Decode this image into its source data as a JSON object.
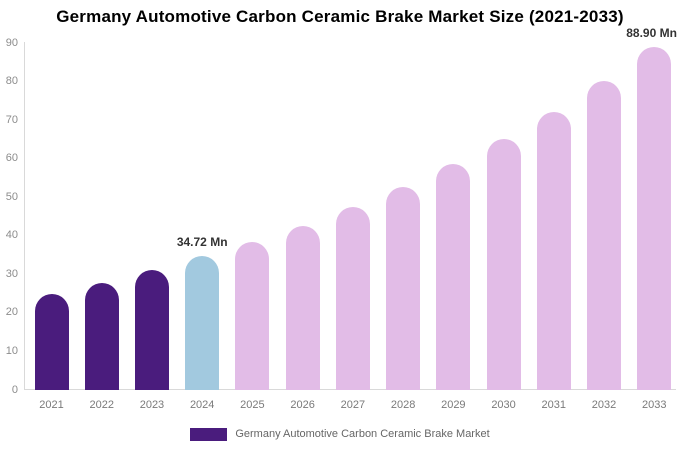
{
  "chart_data": {
    "type": "bar",
    "title": "Germany Automotive Carbon Ceramic Brake Market Size (2021-2033)",
    "unit": "Mn",
    "categories": [
      "2021",
      "2022",
      "2023",
      "2024",
      "2025",
      "2026",
      "2027",
      "2028",
      "2029",
      "2030",
      "2031",
      "2032",
      "2033"
    ],
    "values": [
      25.0,
      27.8,
      31.0,
      34.72,
      38.5,
      42.6,
      47.4,
      52.7,
      58.5,
      65.0,
      72.2,
      80.1,
      88.9
    ],
    "bar_colors": [
      "#4A1C7D",
      "#4A1C7D",
      "#4A1C7D",
      "#A2C9DF",
      "#E2BCE7",
      "#E2BCE7",
      "#E2BCE7",
      "#E2BCE7",
      "#E2BCE7",
      "#E2BCE7",
      "#E2BCE7",
      "#E2BCE7",
      "#E2BCE7"
    ],
    "annotations": [
      {
        "category": "2024",
        "text": "34.72 Mn"
      },
      {
        "category": "2033",
        "text": "88.90 Mn"
      }
    ],
    "y_ticks": [
      0,
      10,
      20,
      30,
      40,
      50,
      60,
      70,
      80,
      90
    ],
    "ylim": [
      0,
      90
    ],
    "grid": false,
    "xlabel": "",
    "ylabel": "",
    "legend_position": "bottom"
  },
  "legend": {
    "label": "Germany Automotive Carbon Ceramic Brake Market",
    "swatch_color": "#4A1C7D"
  },
  "colors": {
    "background": "#ffffff",
    "historical_bar": "#4A1C7D",
    "base_year_bar": "#A2C9DF",
    "forecast_bar": "#E2BCE7",
    "axis_line": "#d9d9d9",
    "tick_text": "#8c8c8c",
    "annotation_text": "#333333",
    "title_text": "#000000",
    "legend_text": "#666666"
  }
}
